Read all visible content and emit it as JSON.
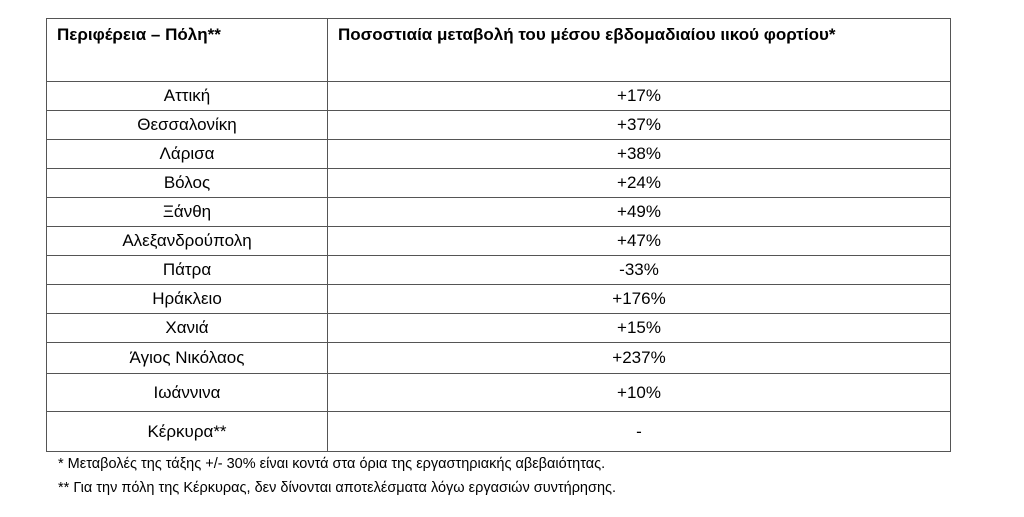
{
  "table": {
    "header": [
      "Περιφέρεια – Πόλη**",
      "Ποσοστιαία μεταβολή του μέσου εβδομαδιαίου ιικού φορτίου*"
    ],
    "rows": [
      [
        "Αττική",
        "+17%"
      ],
      [
        "Θεσσαλονίκη",
        "+37%"
      ],
      [
        "Λάρισα",
        "+38%"
      ],
      [
        "Βόλος",
        "+24%"
      ],
      [
        "Ξάνθη",
        "+49%"
      ],
      [
        "Αλεξανδρούπολη",
        "+47%"
      ],
      [
        "Πάτρα",
        "-33%"
      ],
      [
        "Ηράκλειο",
        "+176%"
      ],
      [
        "Χανιά",
        "+15%"
      ],
      [
        "Άγιος Νικόλαος",
        "+237%"
      ],
      [
        "Ιωάννινα",
        "+10%"
      ],
      [
        "Κέρκυρα**",
        "-"
      ]
    ]
  },
  "footnotes": [
    "* Μεταβολές της τάξης +/- 30% είναι κοντά στα όρια της εργαστηριακής αβεβαιότητας.",
    "** Για την πόλη της Κέρκυρας, δεν δίνονται αποτελέσματα λόγω εργασιών συντήρησης."
  ]
}
